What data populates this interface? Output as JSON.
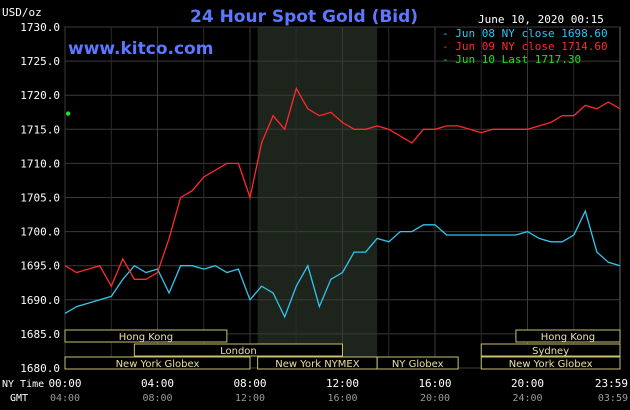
{
  "header": {
    "units": "USD/oz",
    "title": "24 Hour Spot Gold (Bid)",
    "timestamp": "June 10, 2020 00:15",
    "site": "www.kitco.com"
  },
  "legend": [
    {
      "label": "Jun 08 NY close 1698.60",
      "color": "#33c4f0"
    },
    {
      "label": "Jun 09 NY close 1714.60",
      "color": "#ff2a2a"
    },
    {
      "label": "Jun 10 Last 1717.30",
      "color": "#22dd22"
    }
  ],
  "axis_labels": {
    "nytime": "NY Time",
    "gmt": "GMT"
  },
  "sessions": [
    {
      "label": "Hong Kong",
      "start_h": 0,
      "end_h": 7
    },
    {
      "label": "London",
      "start_h": 3,
      "end_h": 12
    },
    {
      "label": "New York Globex",
      "start_h": 0,
      "end_h": 8
    },
    {
      "label": "New York NYMEX",
      "start_h": 8.33,
      "end_h": 13.5
    },
    {
      "label": "NY Globex",
      "start_h": 13.5,
      "end_h": 17
    },
    {
      "label": "Hong Kong",
      "start_h": 19.5,
      "end_h": 24
    },
    {
      "label": "Sydney",
      "start_h": 18,
      "end_h": 24
    },
    {
      "label": "New York Globex",
      "start_h": 18,
      "end_h": 24
    }
  ],
  "chart_data": {
    "type": "line",
    "ylim": [
      1680,
      1730
    ],
    "xlim": [
      0,
      24
    ],
    "yticks": [
      1680,
      1685,
      1690,
      1695,
      1700,
      1705,
      1710,
      1715,
      1720,
      1725,
      1730
    ],
    "yticks_labels": [
      "1680.0",
      "1685.0",
      "1690.0",
      "1695.0",
      "1700.0",
      "1705.0",
      "1710.0",
      "1715.0",
      "1720.0",
      "1725.0",
      "1730.0"
    ],
    "xticks_ny": [
      "00:00",
      "04:00",
      "08:00",
      "12:00",
      "16:00",
      "20:00",
      "23:59"
    ],
    "xticks_gmt": [
      "04:00",
      "08:00",
      "12:00",
      "16:00",
      "20:00",
      "24:00",
      "03:59"
    ],
    "xtick_positions": [
      0,
      4,
      8,
      12,
      16,
      20,
      23.98
    ],
    "highlight_range": [
      8.33,
      13.5
    ],
    "series": [
      {
        "color": "#33c4f0",
        "x": [
          0,
          0.5,
          1,
          1.5,
          2,
          2.5,
          3,
          3.5,
          4,
          4.5,
          5,
          5.5,
          6,
          6.5,
          7,
          7.5,
          8,
          8.5,
          9,
          9.5,
          10,
          10.5,
          11,
          11.5,
          12,
          12.5,
          13,
          13.5,
          14,
          14.5,
          15,
          15.5,
          16,
          16.5,
          17,
          17.5,
          18,
          18.5,
          19,
          19.5,
          20,
          20.5,
          21,
          21.5,
          22,
          22.5,
          23,
          23.5,
          24
        ],
        "y": [
          1688,
          1689,
          1689.5,
          1690,
          1690.5,
          1693,
          1695,
          1694,
          1694.5,
          1691,
          1695,
          1695,
          1694.5,
          1695,
          1694,
          1694.5,
          1690,
          1692,
          1691,
          1687.5,
          1692,
          1695,
          1689,
          1693,
          1694,
          1697,
          1697,
          1699,
          1698.5,
          1700,
          1700,
          1701,
          1701,
          1699.5,
          1699.5,
          1699.5,
          1699.5,
          1699.5,
          1699.5,
          1699.5,
          1700,
          1699,
          1698.5,
          1698.5,
          1699.5,
          1703,
          1697,
          1695.5,
          1695
        ]
      },
      {
        "color": "#ff2a2a",
        "x": [
          0,
          0.5,
          1,
          1.5,
          2,
          2.5,
          3,
          3.5,
          4,
          4.5,
          5,
          5.5,
          6,
          6.5,
          7,
          7.5,
          8,
          8.5,
          9,
          9.5,
          10,
          10.5,
          11,
          11.5,
          12,
          12.5,
          13,
          13.5,
          14,
          14.5,
          15,
          15.5,
          16,
          16.5,
          17,
          17.5,
          18,
          18.5,
          19,
          19.5,
          20,
          20.5,
          21,
          21.5,
          22,
          22.5,
          23,
          23.5,
          24
        ],
        "y": [
          1695,
          1694,
          1694.5,
          1695,
          1692,
          1696,
          1693,
          1693,
          1694,
          1699,
          1705,
          1706,
          1708,
          1709,
          1710,
          1710,
          1705,
          1713,
          1717,
          1715,
          1721,
          1718,
          1717,
          1717.5,
          1716,
          1715,
          1715,
          1715.5,
          1715,
          1714,
          1713,
          1715,
          1715,
          1715.5,
          1715.5,
          1715,
          1714.5,
          1715,
          1715,
          1715,
          1715,
          1715.5,
          1716,
          1717,
          1717,
          1718.5,
          1718,
          1719,
          1718
        ]
      }
    ],
    "last_point": {
      "x": 0.05,
      "y": 1717.3,
      "color": "#22dd22"
    }
  }
}
